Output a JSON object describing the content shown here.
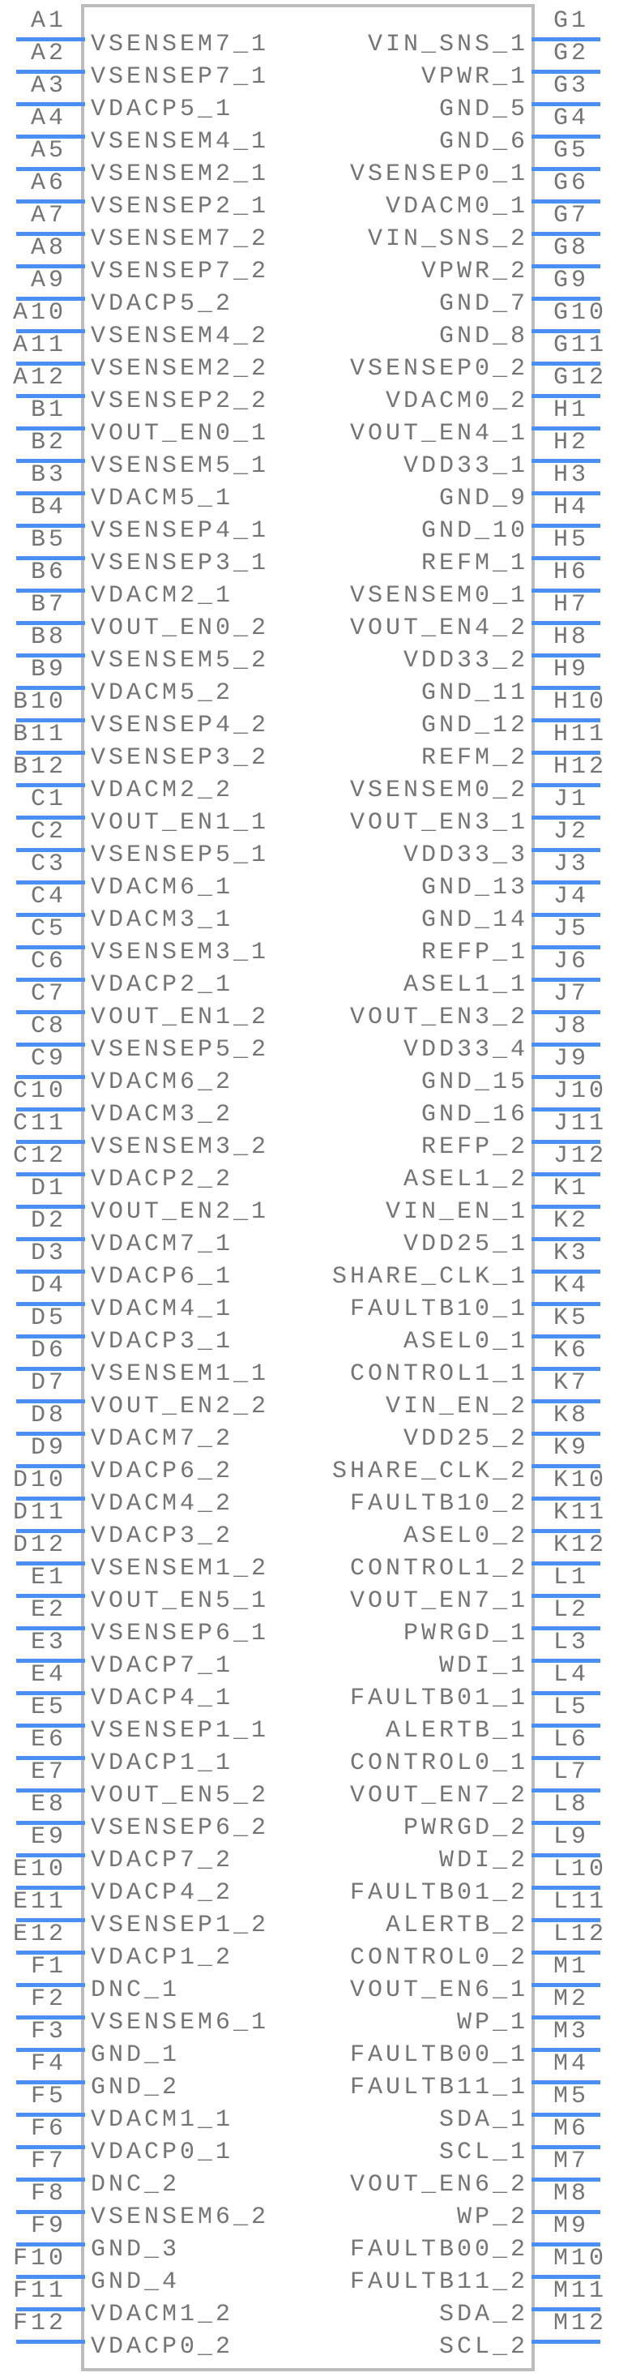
{
  "component": {
    "kind": "schematic-symbol-pinout",
    "colors": {
      "pin_line": "#4a90f4",
      "body_border": "#bdbdbd",
      "text": "#757575",
      "background": "#ffffff"
    },
    "pins": {
      "left": [
        {
          "number": "A1",
          "name": "VSENSEM7_1"
        },
        {
          "number": "A2",
          "name": "VSENSEP7_1"
        },
        {
          "number": "A3",
          "name": "VDACP5_1"
        },
        {
          "number": "A4",
          "name": "VSENSEM4_1"
        },
        {
          "number": "A5",
          "name": "VSENSEM2_1"
        },
        {
          "number": "A6",
          "name": "VSENSEP2_1"
        },
        {
          "number": "A7",
          "name": "VSENSEM7_2"
        },
        {
          "number": "A8",
          "name": "VSENSEP7_2"
        },
        {
          "number": "A9",
          "name": "VDACP5_2"
        },
        {
          "number": "A10",
          "name": "VSENSEM4_2"
        },
        {
          "number": "A11",
          "name": "VSENSEM2_2"
        },
        {
          "number": "A12",
          "name": "VSENSEP2_2"
        },
        {
          "number": "B1",
          "name": "VOUT_EN0_1"
        },
        {
          "number": "B2",
          "name": "VSENSEM5_1"
        },
        {
          "number": "B3",
          "name": "VDACM5_1"
        },
        {
          "number": "B4",
          "name": "VSENSEP4_1"
        },
        {
          "number": "B5",
          "name": "VSENSEP3_1"
        },
        {
          "number": "B6",
          "name": "VDACM2_1"
        },
        {
          "number": "B7",
          "name": "VOUT_EN0_2"
        },
        {
          "number": "B8",
          "name": "VSENSEM5_2"
        },
        {
          "number": "B9",
          "name": "VDACM5_2"
        },
        {
          "number": "B10",
          "name": "VSENSEP4_2"
        },
        {
          "number": "B11",
          "name": "VSENSEP3_2"
        },
        {
          "number": "B12",
          "name": "VDACM2_2"
        },
        {
          "number": "C1",
          "name": "VOUT_EN1_1"
        },
        {
          "number": "C2",
          "name": "VSENSEP5_1"
        },
        {
          "number": "C3",
          "name": "VDACM6_1"
        },
        {
          "number": "C4",
          "name": "VDACM3_1"
        },
        {
          "number": "C5",
          "name": "VSENSEM3_1"
        },
        {
          "number": "C6",
          "name": "VDACP2_1"
        },
        {
          "number": "C7",
          "name": "VOUT_EN1_2"
        },
        {
          "number": "C8",
          "name": "VSENSEP5_2"
        },
        {
          "number": "C9",
          "name": "VDACM6_2"
        },
        {
          "number": "C10",
          "name": "VDACM3_2"
        },
        {
          "number": "C11",
          "name": "VSENSEM3_2"
        },
        {
          "number": "C12",
          "name": "VDACP2_2"
        },
        {
          "number": "D1",
          "name": "VOUT_EN2_1"
        },
        {
          "number": "D2",
          "name": "VDACM7_1"
        },
        {
          "number": "D3",
          "name": "VDACP6_1"
        },
        {
          "number": "D4",
          "name": "VDACM4_1"
        },
        {
          "number": "D5",
          "name": "VDACP3_1"
        },
        {
          "number": "D6",
          "name": "VSENSEM1_1"
        },
        {
          "number": "D7",
          "name": "VOUT_EN2_2"
        },
        {
          "number": "D8",
          "name": "VDACM7_2"
        },
        {
          "number": "D9",
          "name": "VDACP6_2"
        },
        {
          "number": "D10",
          "name": "VDACM4_2"
        },
        {
          "number": "D11",
          "name": "VDACP3_2"
        },
        {
          "number": "D12",
          "name": "VSENSEM1_2"
        },
        {
          "number": "E1",
          "name": "VOUT_EN5_1"
        },
        {
          "number": "E2",
          "name": "VSENSEP6_1"
        },
        {
          "number": "E3",
          "name": "VDACP7_1"
        },
        {
          "number": "E4",
          "name": "VDACP4_1"
        },
        {
          "number": "E5",
          "name": "VSENSEP1_1"
        },
        {
          "number": "E6",
          "name": "VDACP1_1"
        },
        {
          "number": "E7",
          "name": "VOUT_EN5_2"
        },
        {
          "number": "E8",
          "name": "VSENSEP6_2"
        },
        {
          "number": "E9",
          "name": "VDACP7_2"
        },
        {
          "number": "E10",
          "name": "VDACP4_2"
        },
        {
          "number": "E11",
          "name": "VSENSEP1_2"
        },
        {
          "number": "E12",
          "name": "VDACP1_2"
        },
        {
          "number": "F1",
          "name": "DNC_1"
        },
        {
          "number": "F2",
          "name": "VSENSEM6_1"
        },
        {
          "number": "F3",
          "name": "GND_1"
        },
        {
          "number": "F4",
          "name": "GND_2"
        },
        {
          "number": "F5",
          "name": "VDACM1_1"
        },
        {
          "number": "F6",
          "name": "VDACP0_1"
        },
        {
          "number": "F7",
          "name": "DNC_2"
        },
        {
          "number": "F8",
          "name": "VSENSEM6_2"
        },
        {
          "number": "F9",
          "name": "GND_3"
        },
        {
          "number": "F10",
          "name": "GND_4"
        },
        {
          "number": "F11",
          "name": "VDACM1_2"
        },
        {
          "number": "F12",
          "name": "VDACP0_2"
        }
      ],
      "right": [
        {
          "number": "G1",
          "name": "VIN_SNS_1"
        },
        {
          "number": "G2",
          "name": "VPWR_1"
        },
        {
          "number": "G3",
          "name": "GND_5"
        },
        {
          "number": "G4",
          "name": "GND_6"
        },
        {
          "number": "G5",
          "name": "VSENSEP0_1"
        },
        {
          "number": "G6",
          "name": "VDACM0_1"
        },
        {
          "number": "G7",
          "name": "VIN_SNS_2"
        },
        {
          "number": "G8",
          "name": "VPWR_2"
        },
        {
          "number": "G9",
          "name": "GND_7"
        },
        {
          "number": "G10",
          "name": "GND_8"
        },
        {
          "number": "G11",
          "name": "VSENSEP0_2"
        },
        {
          "number": "G12",
          "name": "VDACM0_2"
        },
        {
          "number": "H1",
          "name": "VOUT_EN4_1"
        },
        {
          "number": "H2",
          "name": "VDD33_1"
        },
        {
          "number": "H3",
          "name": "GND_9"
        },
        {
          "number": "H4",
          "name": "GND_10"
        },
        {
          "number": "H5",
          "name": "REFM_1"
        },
        {
          "number": "H6",
          "name": "VSENSEM0_1"
        },
        {
          "number": "H7",
          "name": "VOUT_EN4_2"
        },
        {
          "number": "H8",
          "name": "VDD33_2"
        },
        {
          "number": "H9",
          "name": "GND_11"
        },
        {
          "number": "H10",
          "name": "GND_12"
        },
        {
          "number": "H11",
          "name": "REFM_2"
        },
        {
          "number": "H12",
          "name": "VSENSEM0_2"
        },
        {
          "number": "J1",
          "name": "VOUT_EN3_1"
        },
        {
          "number": "J2",
          "name": "VDD33_3"
        },
        {
          "number": "J3",
          "name": "GND_13"
        },
        {
          "number": "J4",
          "name": "GND_14"
        },
        {
          "number": "J5",
          "name": "REFP_1"
        },
        {
          "number": "J6",
          "name": "ASEL1_1"
        },
        {
          "number": "J7",
          "name": "VOUT_EN3_2"
        },
        {
          "number": "J8",
          "name": "VDD33_4"
        },
        {
          "number": "J9",
          "name": "GND_15"
        },
        {
          "number": "J10",
          "name": "GND_16"
        },
        {
          "number": "J11",
          "name": "REFP_2"
        },
        {
          "number": "J12",
          "name": "ASEL1_2"
        },
        {
          "number": "K1",
          "name": "VIN_EN_1"
        },
        {
          "number": "K2",
          "name": "VDD25_1"
        },
        {
          "number": "K3",
          "name": "SHARE_CLK_1"
        },
        {
          "number": "K4",
          "name": "FAULTB10_1"
        },
        {
          "number": "K5",
          "name": "ASEL0_1"
        },
        {
          "number": "K6",
          "name": "CONTROL1_1"
        },
        {
          "number": "K7",
          "name": "VIN_EN_2"
        },
        {
          "number": "K8",
          "name": "VDD25_2"
        },
        {
          "number": "K9",
          "name": "SHARE_CLK_2"
        },
        {
          "number": "K10",
          "name": "FAULTB10_2"
        },
        {
          "number": "K11",
          "name": "ASEL0_2"
        },
        {
          "number": "K12",
          "name": "CONTROL1_2"
        },
        {
          "number": "L1",
          "name": "VOUT_EN7_1"
        },
        {
          "number": "L2",
          "name": "PWRGD_1"
        },
        {
          "number": "L3",
          "name": "WDI_1"
        },
        {
          "number": "L4",
          "name": "FAULTB01_1"
        },
        {
          "number": "L5",
          "name": "ALERTB_1"
        },
        {
          "number": "L6",
          "name": "CONTROL0_1"
        },
        {
          "number": "L7",
          "name": "VOUT_EN7_2"
        },
        {
          "number": "L8",
          "name": "PWRGD_2"
        },
        {
          "number": "L9",
          "name": "WDI_2"
        },
        {
          "number": "L10",
          "name": "FAULTB01_2"
        },
        {
          "number": "L11",
          "name": "ALERTB_2"
        },
        {
          "number": "L12",
          "name": "CONTROL0_2"
        },
        {
          "number": "M1",
          "name": "VOUT_EN6_1"
        },
        {
          "number": "M2",
          "name": "WP_1"
        },
        {
          "number": "M3",
          "name": "FAULTB00_1"
        },
        {
          "number": "M4",
          "name": "FAULTB11_1"
        },
        {
          "number": "M5",
          "name": "SDA_1"
        },
        {
          "number": "M6",
          "name": "SCL_1"
        },
        {
          "number": "M7",
          "name": "VOUT_EN6_2"
        },
        {
          "number": "M8",
          "name": "WP_2"
        },
        {
          "number": "M9",
          "name": "FAULTB00_2"
        },
        {
          "number": "M10",
          "name": "FAULTB11_2"
        },
        {
          "number": "M11",
          "name": "SDA_2"
        },
        {
          "number": "M12",
          "name": "SCL_2"
        }
      ]
    }
  }
}
